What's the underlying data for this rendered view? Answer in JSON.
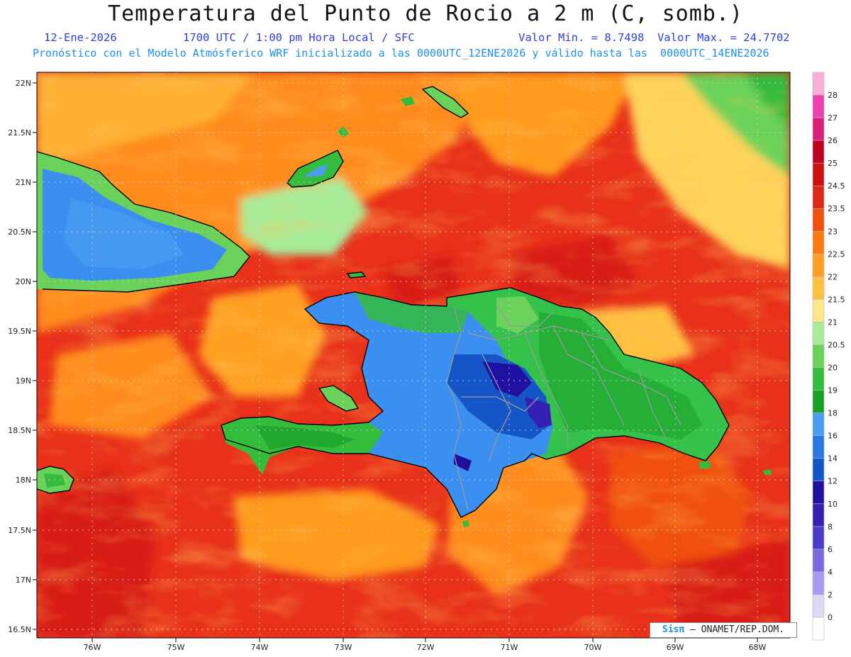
{
  "header": {
    "title": "Temperatura del Punto de Rocio a 2 m (C, somb.)",
    "date": "12-Ene-2026",
    "time": "1700 UTC / 1:00 pm Hora Local / SFC",
    "minmax": "Valor Min. = 8.7498  Valor Max. = 24.7702",
    "description": "Pronóstico con el Modelo Atmósferico WRF inicializado a las 0000UTC_12ENE2026 y válido hasta las  0000UTC_14ENE2026"
  },
  "colors": {
    "subtitle_blue": "#2c3fd6",
    "description_blue": "#1e90e8",
    "ocean_warm": "#e02020",
    "ocean_orange": "#ff8c1a",
    "haiti_blue": "#3a8ff0",
    "dr_green": "#35c24a"
  },
  "map": {
    "lat_labels": [
      "22N",
      "21.5N",
      "21N",
      "20.5N",
      "20N",
      "19.5N",
      "19N",
      "18.5N",
      "18N",
      "17.5N",
      "17N",
      "16.5N"
    ],
    "lon_labels": [
      "76W",
      "75W",
      "74W",
      "73W",
      "72W",
      "71W",
      "70W",
      "69W",
      "68W"
    ],
    "lat_range": [
      16.5,
      22
    ],
    "lon_range": [
      -76.6,
      -67.6
    ]
  },
  "legend": {
    "levels": [
      "0",
      "2",
      "4",
      "6",
      "8",
      "10",
      "12",
      "14",
      "16",
      "18",
      "19",
      "20",
      "20.5",
      "21",
      "21.5",
      "22",
      "22.5",
      "23",
      "23.5",
      "24.5",
      "25",
      "26",
      "27",
      "28"
    ],
    "colors": [
      "#ffffff",
      "#d9d9f2",
      "#a79af2",
      "#7a6ae0",
      "#4a3cc8",
      "#3420b4",
      "#1f10a0",
      "#1456c8",
      "#2878e0",
      "#4a9df0",
      "#18a028",
      "#34bc3c",
      "#6ad25a",
      "#a8ec98",
      "#ffe88a",
      "#ffc040",
      "#ffa020",
      "#ff7a10",
      "#f05010",
      "#e02818",
      "#d01010",
      "#c00020",
      "#d8207a",
      "#f040b0",
      "#f8b0d8"
    ]
  },
  "footer": {
    "logo_text": "Sisπ",
    "logo_rest": "– ONAMET/REP.DOM."
  }
}
